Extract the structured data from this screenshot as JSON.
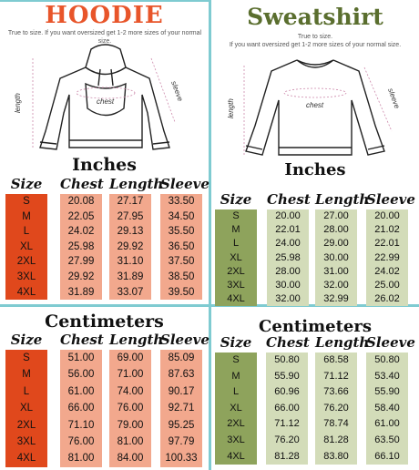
{
  "left": {
    "title": "HOODIE",
    "title_color": "#e8552a",
    "note": "True to size. If you want oversized get 1-2 more sizes of your normal size.",
    "diagram": {
      "length": "length",
      "chest": "chest",
      "sleeve": "sleeve"
    },
    "inches": {
      "heading": "Inches",
      "headers": [
        "Size",
        "Chest",
        "Length",
        "Sleeve"
      ],
      "sizes": [
        "S",
        "M",
        "L",
        "XL",
        "2XL",
        "3XL",
        "4XL"
      ],
      "chest": [
        "20.08",
        "22.05",
        "24.02",
        "25.98",
        "27.99",
        "29.92",
        "31.89"
      ],
      "length": [
        "27.17",
        "27.95",
        "29.13",
        "29.92",
        "31.10",
        "31.89",
        "33.07"
      ],
      "sleeve": [
        "33.50",
        "34.50",
        "35.50",
        "36.50",
        "37.50",
        "38.50",
        "39.50"
      ]
    },
    "cm": {
      "heading": "Centimeters",
      "headers": [
        "Size",
        "Chest",
        "Length",
        "Sleeve"
      ],
      "sizes": [
        "S",
        "M",
        "L",
        "XL",
        "2XL",
        "3XL",
        "4XL"
      ],
      "chest": [
        "51.00",
        "56.00",
        "61.00",
        "66.00",
        "71.10",
        "76.00",
        "81.00"
      ],
      "length": [
        "69.00",
        "71.00",
        "74.00",
        "76.00",
        "79.00",
        "81.00",
        "84.00"
      ],
      "sleeve": [
        "85.09",
        "87.63",
        "90.17",
        "92.71",
        "95.25",
        "97.79",
        "100.33"
      ]
    },
    "colors": {
      "dark": "#e0481c",
      "light": "#f2a88d"
    }
  },
  "right": {
    "title": "Sweatshirt",
    "title_color": "#5a6e2e",
    "note_line1": "True to size.",
    "note_line2": "If you want oversized get 1-2 more sizes of your normal size.",
    "diagram": {
      "length": "length",
      "chest": "chest",
      "sleeve": "sleeve"
    },
    "inches": {
      "heading": "Inches",
      "headers": [
        "Size",
        "Chest",
        "Length",
        "Sleeve"
      ],
      "sizes": [
        "S",
        "M",
        "L",
        "XL",
        "2XL",
        "3XL",
        "4XL"
      ],
      "chest": [
        "20.00",
        "22.01",
        "24.00",
        "25.98",
        "28.00",
        "30.00",
        "32.00"
      ],
      "length": [
        "27.00",
        "28.00",
        "29.00",
        "30.00",
        "31.00",
        "32.00",
        "32.99"
      ],
      "sleeve": [
        "20.00",
        "21.02",
        "22.01",
        "22.99",
        "24.02",
        "25.00",
        "26.02"
      ]
    },
    "cm": {
      "heading": "Centimeters",
      "headers": [
        "Size",
        "Chest",
        "Length",
        "Sleeve"
      ],
      "sizes": [
        "S",
        "M",
        "L",
        "XL",
        "2XL",
        "3XL",
        "4XL"
      ],
      "chest": [
        "50.80",
        "55.90",
        "60.96",
        "66.00",
        "71.12",
        "76.20",
        "81.28"
      ],
      "length": [
        "68.58",
        "71.12",
        "73.66",
        "76.20",
        "78.74",
        "81.28",
        "83.80"
      ],
      "sleeve": [
        "50.80",
        "53.40",
        "55.90",
        "58.40",
        "61.00",
        "63.50",
        "66.10"
      ]
    },
    "colors": {
      "dark": "#8ea35c",
      "light": "#d3dcb9"
    }
  }
}
